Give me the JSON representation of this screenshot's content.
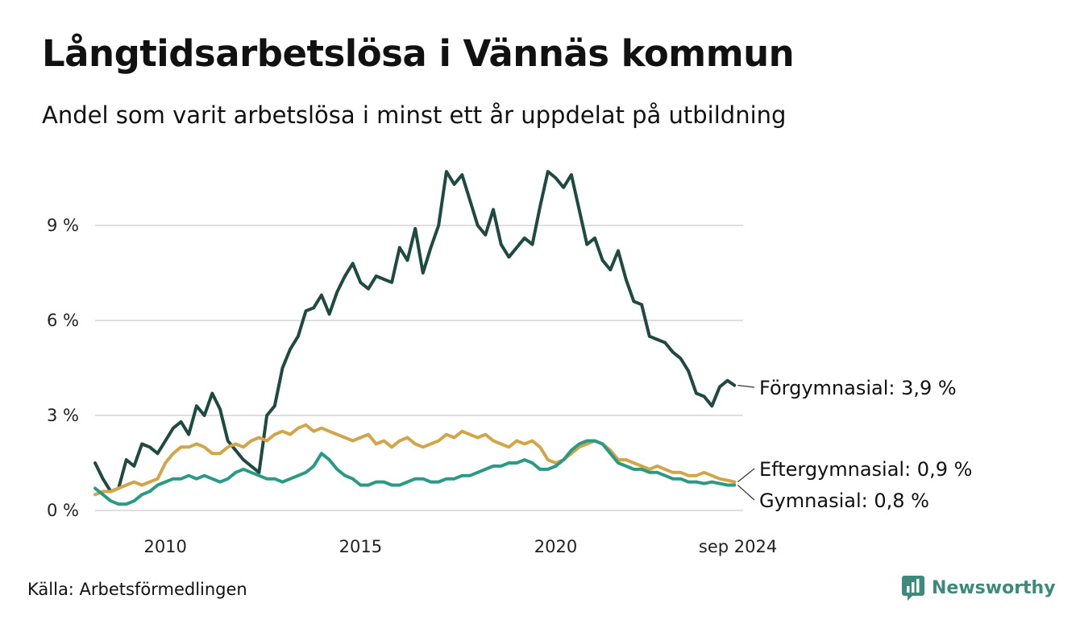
{
  "chart_data": {
    "type": "line",
    "title": "Långtidsarbetslösa i Vännäs kommun",
    "subtitle": "Andel som varit arbetslösa i minst ett år uppdelat på utbildning",
    "x_ticks": [
      "2010",
      "2015",
      "2020",
      "sep 2024"
    ],
    "y_ticks": [
      "0 %",
      "3 %",
      "6 %",
      "9 %"
    ],
    "xlim": [
      2008.2,
      2024.8
    ],
    "ylim": [
      0,
      10.8
    ],
    "grid": true,
    "source": "Källa: Arbetsförmedlingen",
    "series": [
      {
        "name": "Förgymnasial",
        "end_label": "Förgymnasial: 3,9 %",
        "color": "#1f4a40",
        "points": [
          [
            2008.2,
            1.5
          ],
          [
            2008.4,
            1.0
          ],
          [
            2008.6,
            0.6
          ],
          [
            2008.8,
            0.7
          ],
          [
            2009.0,
            1.6
          ],
          [
            2009.2,
            1.4
          ],
          [
            2009.4,
            2.1
          ],
          [
            2009.6,
            2.0
          ],
          [
            2009.8,
            1.8
          ],
          [
            2010.0,
            2.2
          ],
          [
            2010.2,
            2.6
          ],
          [
            2010.4,
            2.8
          ],
          [
            2010.6,
            2.4
          ],
          [
            2010.8,
            3.3
          ],
          [
            2011.0,
            3.0
          ],
          [
            2011.2,
            3.7
          ],
          [
            2011.4,
            3.2
          ],
          [
            2011.6,
            2.2
          ],
          [
            2011.8,
            1.9
          ],
          [
            2012.0,
            1.6
          ],
          [
            2012.2,
            1.4
          ],
          [
            2012.4,
            1.2
          ],
          [
            2012.6,
            3.0
          ],
          [
            2012.8,
            3.3
          ],
          [
            2013.0,
            4.5
          ],
          [
            2013.2,
            5.1
          ],
          [
            2013.4,
            5.5
          ],
          [
            2013.6,
            6.3
          ],
          [
            2013.8,
            6.4
          ],
          [
            2014.0,
            6.8
          ],
          [
            2014.2,
            6.2
          ],
          [
            2014.4,
            6.9
          ],
          [
            2014.6,
            7.4
          ],
          [
            2014.8,
            7.8
          ],
          [
            2015.0,
            7.2
          ],
          [
            2015.2,
            7.0
          ],
          [
            2015.4,
            7.4
          ],
          [
            2015.6,
            7.3
          ],
          [
            2015.8,
            7.2
          ],
          [
            2016.0,
            8.3
          ],
          [
            2016.2,
            7.9
          ],
          [
            2016.4,
            8.9
          ],
          [
            2016.6,
            7.5
          ],
          [
            2016.8,
            8.3
          ],
          [
            2017.0,
            9.0
          ],
          [
            2017.2,
            10.7
          ],
          [
            2017.4,
            10.3
          ],
          [
            2017.6,
            10.6
          ],
          [
            2017.8,
            9.8
          ],
          [
            2018.0,
            9.0
          ],
          [
            2018.2,
            8.7
          ],
          [
            2018.4,
            9.5
          ],
          [
            2018.6,
            8.4
          ],
          [
            2018.8,
            8.0
          ],
          [
            2019.0,
            8.3
          ],
          [
            2019.2,
            8.6
          ],
          [
            2019.4,
            8.4
          ],
          [
            2019.6,
            9.6
          ],
          [
            2019.8,
            10.7
          ],
          [
            2020.0,
            10.5
          ],
          [
            2020.2,
            10.2
          ],
          [
            2020.4,
            10.6
          ],
          [
            2020.6,
            9.5
          ],
          [
            2020.8,
            8.4
          ],
          [
            2021.0,
            8.6
          ],
          [
            2021.2,
            7.9
          ],
          [
            2021.4,
            7.6
          ],
          [
            2021.6,
            8.2
          ],
          [
            2021.8,
            7.3
          ],
          [
            2022.0,
            6.6
          ],
          [
            2022.2,
            6.5
          ],
          [
            2022.4,
            5.5
          ],
          [
            2022.6,
            5.4
          ],
          [
            2022.8,
            5.3
          ],
          [
            2023.0,
            5.0
          ],
          [
            2023.2,
            4.8
          ],
          [
            2023.4,
            4.4
          ],
          [
            2023.6,
            3.7
          ],
          [
            2023.8,
            3.6
          ],
          [
            2024.0,
            3.3
          ],
          [
            2024.2,
            3.9
          ],
          [
            2024.4,
            4.1
          ],
          [
            2024.58,
            3.95
          ]
        ]
      },
      {
        "name": "Eftergymnasial",
        "end_label": "Eftergymnasial: 0,9 %",
        "color": "#d1a548",
        "points": [
          [
            2008.2,
            0.5
          ],
          [
            2008.4,
            0.6
          ],
          [
            2008.6,
            0.6
          ],
          [
            2008.8,
            0.7
          ],
          [
            2009.0,
            0.8
          ],
          [
            2009.2,
            0.9
          ],
          [
            2009.4,
            0.8
          ],
          [
            2009.6,
            0.9
          ],
          [
            2009.8,
            1.0
          ],
          [
            2010.0,
            1.5
          ],
          [
            2010.2,
            1.8
          ],
          [
            2010.4,
            2.0
          ],
          [
            2010.6,
            2.0
          ],
          [
            2010.8,
            2.1
          ],
          [
            2011.0,
            2.0
          ],
          [
            2011.2,
            1.8
          ],
          [
            2011.4,
            1.8
          ],
          [
            2011.6,
            2.0
          ],
          [
            2011.8,
            2.1
          ],
          [
            2012.0,
            2.0
          ],
          [
            2012.2,
            2.2
          ],
          [
            2012.4,
            2.3
          ],
          [
            2012.6,
            2.2
          ],
          [
            2012.8,
            2.4
          ],
          [
            2013.0,
            2.5
          ],
          [
            2013.2,
            2.4
          ],
          [
            2013.4,
            2.6
          ],
          [
            2013.6,
            2.7
          ],
          [
            2013.8,
            2.5
          ],
          [
            2014.0,
            2.6
          ],
          [
            2014.2,
            2.5
          ],
          [
            2014.4,
            2.4
          ],
          [
            2014.6,
            2.3
          ],
          [
            2014.8,
            2.2
          ],
          [
            2015.0,
            2.3
          ],
          [
            2015.2,
            2.4
          ],
          [
            2015.4,
            2.1
          ],
          [
            2015.6,
            2.2
          ],
          [
            2015.8,
            2.0
          ],
          [
            2016.0,
            2.2
          ],
          [
            2016.2,
            2.3
          ],
          [
            2016.4,
            2.1
          ],
          [
            2016.6,
            2.0
          ],
          [
            2016.8,
            2.1
          ],
          [
            2017.0,
            2.2
          ],
          [
            2017.2,
            2.4
          ],
          [
            2017.4,
            2.3
          ],
          [
            2017.6,
            2.5
          ],
          [
            2017.8,
            2.4
          ],
          [
            2018.0,
            2.3
          ],
          [
            2018.2,
            2.4
          ],
          [
            2018.4,
            2.2
          ],
          [
            2018.6,
            2.1
          ],
          [
            2018.8,
            2.0
          ],
          [
            2019.0,
            2.2
          ],
          [
            2019.2,
            2.1
          ],
          [
            2019.4,
            2.2
          ],
          [
            2019.6,
            2.0
          ],
          [
            2019.8,
            1.6
          ],
          [
            2020.0,
            1.5
          ],
          [
            2020.2,
            1.6
          ],
          [
            2020.4,
            1.8
          ],
          [
            2020.6,
            2.0
          ],
          [
            2020.8,
            2.1
          ],
          [
            2021.0,
            2.2
          ],
          [
            2021.2,
            2.1
          ],
          [
            2021.4,
            1.9
          ],
          [
            2021.6,
            1.6
          ],
          [
            2021.8,
            1.6
          ],
          [
            2022.0,
            1.5
          ],
          [
            2022.2,
            1.4
          ],
          [
            2022.4,
            1.3
          ],
          [
            2022.6,
            1.4
          ],
          [
            2022.8,
            1.3
          ],
          [
            2023.0,
            1.2
          ],
          [
            2023.2,
            1.2
          ],
          [
            2023.4,
            1.1
          ],
          [
            2023.6,
            1.1
          ],
          [
            2023.8,
            1.2
          ],
          [
            2024.0,
            1.1
          ],
          [
            2024.2,
            1.0
          ],
          [
            2024.4,
            0.95
          ],
          [
            2024.58,
            0.9
          ]
        ]
      },
      {
        "name": "Gymnasial",
        "end_label": "Gymnasial: 0,8 %",
        "color": "#2a9a85",
        "points": [
          [
            2008.2,
            0.7
          ],
          [
            2008.4,
            0.5
          ],
          [
            2008.6,
            0.3
          ],
          [
            2008.8,
            0.2
          ],
          [
            2009.0,
            0.2
          ],
          [
            2009.2,
            0.3
          ],
          [
            2009.4,
            0.5
          ],
          [
            2009.6,
            0.6
          ],
          [
            2009.8,
            0.8
          ],
          [
            2010.0,
            0.9
          ],
          [
            2010.2,
            1.0
          ],
          [
            2010.4,
            1.0
          ],
          [
            2010.6,
            1.1
          ],
          [
            2010.8,
            1.0
          ],
          [
            2011.0,
            1.1
          ],
          [
            2011.2,
            1.0
          ],
          [
            2011.4,
            0.9
          ],
          [
            2011.6,
            1.0
          ],
          [
            2011.8,
            1.2
          ],
          [
            2012.0,
            1.3
          ],
          [
            2012.2,
            1.2
          ],
          [
            2012.4,
            1.1
          ],
          [
            2012.6,
            1.0
          ],
          [
            2012.8,
            1.0
          ],
          [
            2013.0,
            0.9
          ],
          [
            2013.2,
            1.0
          ],
          [
            2013.4,
            1.1
          ],
          [
            2013.6,
            1.2
          ],
          [
            2013.8,
            1.4
          ],
          [
            2014.0,
            1.8
          ],
          [
            2014.2,
            1.6
          ],
          [
            2014.4,
            1.3
          ],
          [
            2014.6,
            1.1
          ],
          [
            2014.8,
            1.0
          ],
          [
            2015.0,
            0.8
          ],
          [
            2015.2,
            0.8
          ],
          [
            2015.4,
            0.9
          ],
          [
            2015.6,
            0.9
          ],
          [
            2015.8,
            0.8
          ],
          [
            2016.0,
            0.8
          ],
          [
            2016.2,
            0.9
          ],
          [
            2016.4,
            1.0
          ],
          [
            2016.6,
            1.0
          ],
          [
            2016.8,
            0.9
          ],
          [
            2017.0,
            0.9
          ],
          [
            2017.2,
            1.0
          ],
          [
            2017.4,
            1.0
          ],
          [
            2017.6,
            1.1
          ],
          [
            2017.8,
            1.1
          ],
          [
            2018.0,
            1.2
          ],
          [
            2018.2,
            1.3
          ],
          [
            2018.4,
            1.4
          ],
          [
            2018.6,
            1.4
          ],
          [
            2018.8,
            1.5
          ],
          [
            2019.0,
            1.5
          ],
          [
            2019.2,
            1.6
          ],
          [
            2019.4,
            1.5
          ],
          [
            2019.6,
            1.3
          ],
          [
            2019.8,
            1.3
          ],
          [
            2020.0,
            1.4
          ],
          [
            2020.2,
            1.6
          ],
          [
            2020.4,
            1.9
          ],
          [
            2020.6,
            2.1
          ],
          [
            2020.8,
            2.2
          ],
          [
            2021.0,
            2.2
          ],
          [
            2021.2,
            2.1
          ],
          [
            2021.4,
            1.8
          ],
          [
            2021.6,
            1.5
          ],
          [
            2021.8,
            1.4
          ],
          [
            2022.0,
            1.3
          ],
          [
            2022.2,
            1.3
          ],
          [
            2022.4,
            1.2
          ],
          [
            2022.6,
            1.2
          ],
          [
            2022.8,
            1.1
          ],
          [
            2023.0,
            1.0
          ],
          [
            2023.2,
            1.0
          ],
          [
            2023.4,
            0.9
          ],
          [
            2023.6,
            0.9
          ],
          [
            2023.8,
            0.85
          ],
          [
            2024.0,
            0.9
          ],
          [
            2024.2,
            0.85
          ],
          [
            2024.4,
            0.8
          ],
          [
            2024.58,
            0.8
          ]
        ]
      }
    ]
  },
  "brand": {
    "name": "Newsworthy",
    "icon": "newsworthy-logo-icon"
  }
}
